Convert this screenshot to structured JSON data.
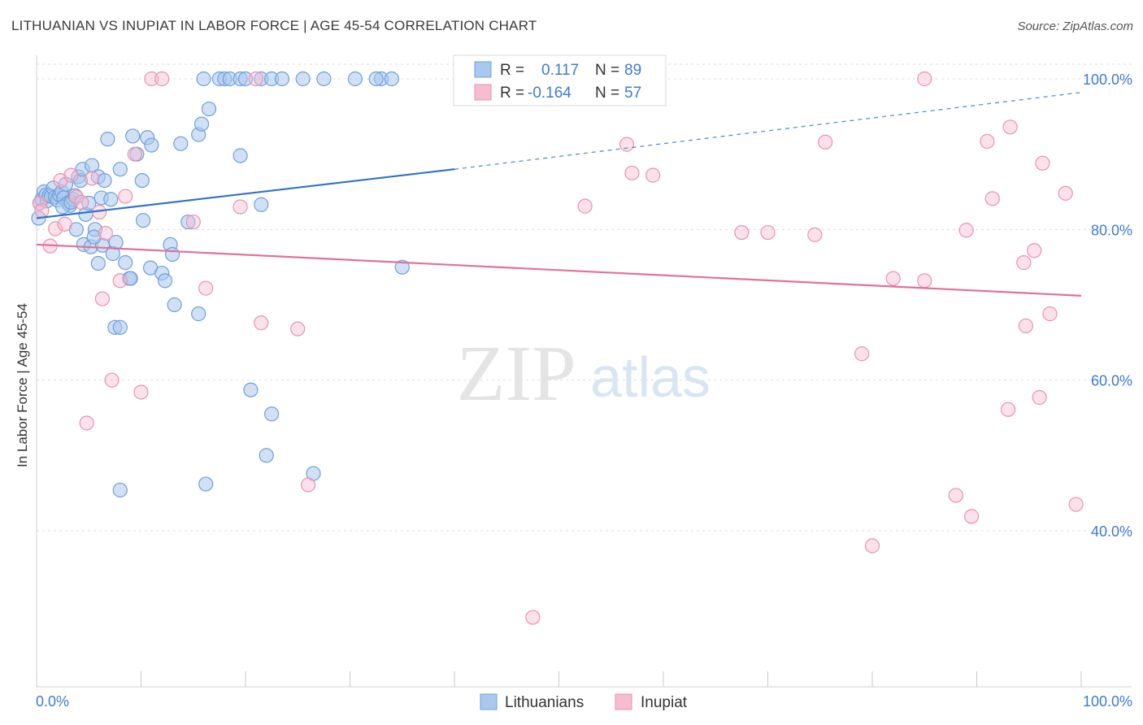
{
  "header": {
    "title": "LITHUANIAN VS INUPIAT IN LABOR FORCE | AGE 45-54 CORRELATION CHART",
    "source": "Source: ZipAtlas.com"
  },
  "watermark": {
    "zip": "ZIP",
    "atlas": "atlas"
  },
  "legend_box": {
    "rows": [
      {
        "r_label": "R =",
        "r_value": "0.117",
        "n_label": "N =",
        "n_value": "89"
      },
      {
        "r_label": "R =",
        "r_value": "-0.164",
        "n_label": "N =",
        "n_value": "57"
      }
    ]
  },
  "bottom_legend": {
    "series1": "Lithuanians",
    "series2": "Inupiat"
  },
  "colors": {
    "blue_fill": "#a9c8ef",
    "blue_stroke": "#6f9fd8",
    "blue_line": "#2f72c9",
    "pink_fill": "#f6bcd0",
    "pink_stroke": "#e992b0",
    "pink_line": "#e3709a",
    "tick_text": "#3e7bd0",
    "grid": "#dcdcdc"
  },
  "chart_data": {
    "type": "scatter",
    "title": "LITHUANIAN VS INUPIAT IN LABOR FORCE | AGE 45-54 CORRELATION CHART",
    "xlabel": "",
    "ylabel": "In Labor Force | Age 45-54",
    "xlim": [
      0,
      100
    ],
    "ylim": [
      20,
      102
    ],
    "x_tick_labels": {
      "left": "0.0%",
      "right": "100.0%"
    },
    "y_ticks": [
      {
        "value": 100,
        "label": "100.0%"
      },
      {
        "value": 80,
        "label": "80.0%"
      },
      {
        "value": 60,
        "label": "60.0%"
      },
      {
        "value": 40,
        "label": "40.0%"
      }
    ],
    "series": [
      {
        "name": "Lithuanians",
        "R": 0.117,
        "N": 89,
        "trend": {
          "solid": [
            [
              0,
              81.5
            ],
            [
              40,
              88.0
            ]
          ],
          "dashed": [
            [
              40,
              88.0
            ],
            [
              100,
              98.2
            ]
          ]
        },
        "points": [
          [
            0.3,
            83.5
          ],
          [
            0.5,
            84.0
          ],
          [
            0.7,
            85.0
          ],
          [
            0.9,
            84.6
          ],
          [
            1.0,
            83.8
          ],
          [
            1.2,
            84.5
          ],
          [
            1.4,
            84.4
          ],
          [
            1.6,
            85.5
          ],
          [
            1.8,
            84.3
          ],
          [
            2.0,
            83.9
          ],
          [
            2.2,
            84.6
          ],
          [
            2.4,
            85.0
          ],
          [
            2.6,
            84.2
          ],
          [
            2.8,
            86.0
          ],
          [
            3.0,
            83.5
          ],
          [
            3.2,
            83.2
          ],
          [
            3.5,
            84.0
          ],
          [
            3.8,
            80.0
          ],
          [
            4.0,
            87.0
          ],
          [
            4.2,
            86.5
          ],
          [
            4.4,
            88.0
          ],
          [
            4.7,
            82.0
          ],
          [
            5.0,
            83.5
          ],
          [
            5.3,
            88.5
          ],
          [
            5.6,
            80.0
          ],
          [
            5.9,
            87.0
          ],
          [
            6.2,
            84.2
          ],
          [
            6.5,
            86.5
          ],
          [
            6.8,
            92.0
          ],
          [
            7.1,
            84.0
          ],
          [
            4.5,
            78.0
          ],
          [
            5.2,
            77.7
          ],
          [
            5.9,
            75.5
          ],
          [
            6.3,
            77.9
          ],
          [
            7.3,
            76.8
          ],
          [
            7.6,
            78.3
          ],
          [
            8.0,
            88.0
          ],
          [
            8.5,
            75.6
          ],
          [
            8.9,
            73.5
          ],
          [
            9.2,
            92.4
          ],
          [
            9.6,
            90.0
          ],
          [
            10.1,
            86.5
          ],
          [
            10.6,
            92.2
          ],
          [
            11.0,
            91.2
          ],
          [
            10.2,
            81.2
          ],
          [
            10.9,
            74.9
          ],
          [
            12.0,
            74.2
          ],
          [
            12.3,
            73.2
          ],
          [
            12.8,
            78.0
          ],
          [
            13.0,
            76.7
          ],
          [
            13.2,
            70.0
          ],
          [
            13.8,
            91.4
          ],
          [
            14.5,
            81.0
          ],
          [
            15.5,
            92.6
          ],
          [
            15.8,
            94.0
          ],
          [
            16.5,
            96.0
          ],
          [
            15.5,
            68.8
          ],
          [
            16.0,
            100.0
          ],
          [
            17.5,
            100.0
          ],
          [
            18.0,
            100.0
          ],
          [
            18.5,
            100.0
          ],
          [
            19.5,
            100.0
          ],
          [
            20.0,
            100.0
          ],
          [
            21.5,
            100.0
          ],
          [
            22.5,
            100.0
          ],
          [
            23.5,
            100.0
          ],
          [
            25.5,
            100.0
          ],
          [
            27.5,
            100.0
          ],
          [
            30.5,
            100.0
          ],
          [
            33.0,
            100.0
          ],
          [
            32.5,
            100.0
          ],
          [
            34.0,
            100.0
          ],
          [
            19.5,
            89.8
          ],
          [
            21.5,
            83.3
          ],
          [
            35.0,
            75.0
          ],
          [
            20.5,
            58.7
          ],
          [
            22.5,
            55.5
          ],
          [
            22.0,
            50.0
          ],
          [
            26.5,
            47.6
          ],
          [
            16.2,
            46.2
          ],
          [
            8.0,
            45.4
          ],
          [
            7.5,
            67.0
          ],
          [
            8.0,
            67.0
          ],
          [
            9.0,
            73.5
          ],
          [
            5.5,
            79.0
          ],
          [
            2.5,
            83.0
          ],
          [
            3.3,
            83.6
          ],
          [
            3.7,
            84.5
          ],
          [
            0.2,
            81.5
          ]
        ]
      },
      {
        "name": "Inupiat",
        "R": -0.164,
        "N": 57,
        "trend": {
          "solid": [
            [
              0,
              78.0
            ],
            [
              100,
              71.2
            ]
          ]
        },
        "points": [
          [
            0.3,
            83.5
          ],
          [
            1.3,
            77.8
          ],
          [
            1.8,
            80.1
          ],
          [
            2.3,
            86.5
          ],
          [
            2.7,
            80.7
          ],
          [
            3.3,
            87.2
          ],
          [
            3.8,
            84.3
          ],
          [
            4.3,
            83.6
          ],
          [
            4.8,
            54.3
          ],
          [
            5.3,
            86.8
          ],
          [
            6.0,
            82.3
          ],
          [
            6.3,
            70.8
          ],
          [
            6.6,
            79.5
          ],
          [
            7.2,
            60.0
          ],
          [
            8.0,
            73.2
          ],
          [
            8.5,
            84.4
          ],
          [
            9.4,
            90.0
          ],
          [
            10.0,
            58.4
          ],
          [
            11.0,
            100.0
          ],
          [
            12.0,
            100.0
          ],
          [
            15.0,
            81.0
          ],
          [
            16.2,
            72.2
          ],
          [
            19.5,
            83.0
          ],
          [
            21.0,
            100.0
          ],
          [
            21.5,
            67.6
          ],
          [
            25.0,
            66.8
          ],
          [
            26.0,
            46.1
          ],
          [
            47.5,
            28.5
          ],
          [
            52.5,
            83.1
          ],
          [
            56.5,
            91.3
          ],
          [
            57.0,
            87.5
          ],
          [
            59.0,
            87.2
          ],
          [
            67.5,
            79.6
          ],
          [
            70.0,
            79.6
          ],
          [
            74.5,
            79.3
          ],
          [
            75.5,
            91.6
          ],
          [
            79.0,
            63.5
          ],
          [
            80.0,
            38.0
          ],
          [
            82.0,
            73.5
          ],
          [
            85.0,
            100.0
          ],
          [
            85.0,
            73.2
          ],
          [
            88.0,
            44.7
          ],
          [
            89.0,
            79.9
          ],
          [
            89.5,
            41.9
          ],
          [
            91.0,
            91.7
          ],
          [
            91.5,
            84.1
          ],
          [
            93.0,
            56.1
          ],
          [
            93.2,
            93.6
          ],
          [
            94.5,
            75.6
          ],
          [
            94.7,
            67.2
          ],
          [
            95.5,
            77.2
          ],
          [
            96.0,
            57.7
          ],
          [
            96.3,
            88.8
          ],
          [
            97.0,
            68.8
          ],
          [
            98.5,
            84.8
          ],
          [
            99.5,
            43.5
          ],
          [
            0.5,
            82.5
          ]
        ]
      }
    ]
  }
}
